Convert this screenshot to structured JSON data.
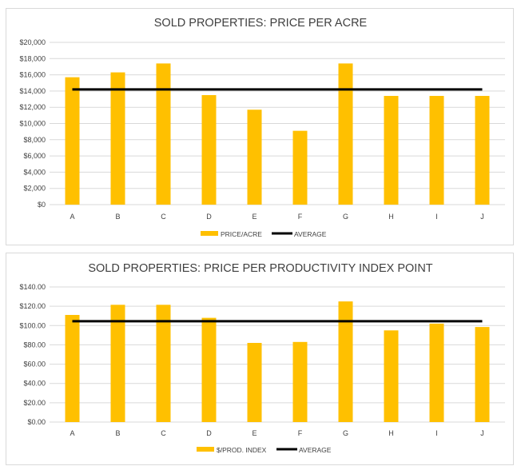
{
  "colors": {
    "bar": "#ffc000",
    "average": "#000000",
    "grid": "#d9d9d9",
    "text": "#404040"
  },
  "chart_data": [
    {
      "type": "bar",
      "title": "SOLD PROPERTIES: PRICE PER ACRE",
      "categories": [
        "A",
        "B",
        "C",
        "D",
        "E",
        "F",
        "G",
        "H",
        "I",
        "J"
      ],
      "series": [
        {
          "name": "PRICE/ACRE",
          "type": "bar",
          "values": [
            15700,
            16300,
            17400,
            13500,
            11700,
            9100,
            17400,
            13400,
            13400,
            13400
          ]
        },
        {
          "name": "AVERAGE",
          "type": "line",
          "values": [
            14200,
            14200,
            14200,
            14200,
            14200,
            14200,
            14200,
            14200,
            14200,
            14200
          ]
        }
      ],
      "ylim": [
        0,
        20000
      ],
      "yticks": [
        "$0",
        "$2,000",
        "$4,000",
        "$6,000",
        "$8,000",
        "$10,000",
        "$12,000",
        "$14,000",
        "$16,000",
        "$18,000",
        "$20,000"
      ],
      "grid": true,
      "legend_position": "bottom"
    },
    {
      "type": "bar",
      "title": "SOLD PROPERTIES: PRICE PER PRODUCTIVITY INDEX  POINT",
      "categories": [
        "A",
        "B",
        "C",
        "D",
        "E",
        "F",
        "G",
        "H",
        "I",
        "J"
      ],
      "series": [
        {
          "name": "$/PROD. INDEX",
          "type": "bar",
          "values": [
            111,
            121.5,
            121.5,
            108,
            82,
            83,
            125,
            95,
            102,
            98.5
          ]
        },
        {
          "name": "AVERAGE",
          "type": "line",
          "values": [
            104.5,
            104.5,
            104.5,
            104.5,
            104.5,
            104.5,
            104.5,
            104.5,
            104.5,
            104.5
          ]
        }
      ],
      "ylim": [
        0,
        140
      ],
      "yticks": [
        "$0.00",
        "$20.00",
        "$40.00",
        "$60.00",
        "$80.00",
        "$100.00",
        "$120.00",
        "$140.00"
      ],
      "grid": true,
      "legend_position": "bottom"
    }
  ]
}
